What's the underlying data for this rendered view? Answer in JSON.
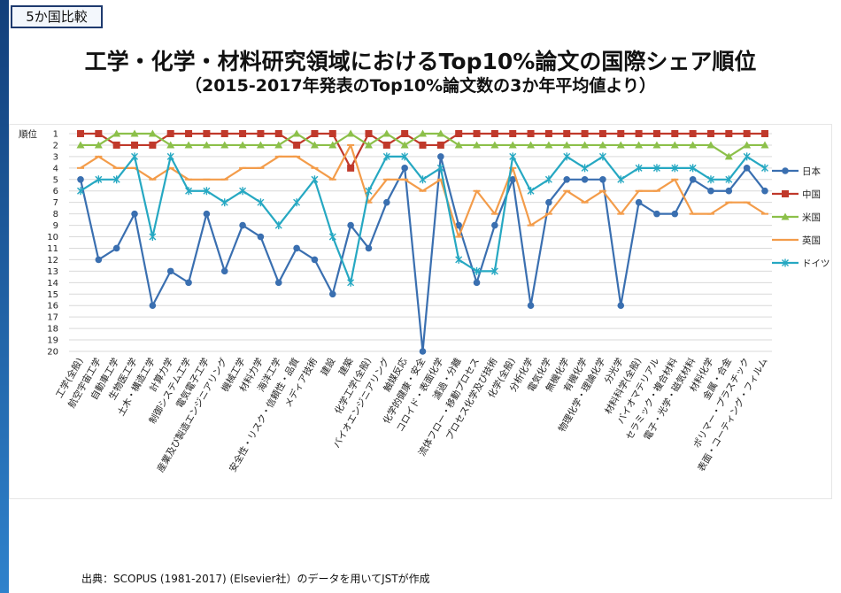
{
  "slide": {
    "tag": "5か国比較",
    "title": "工学・化学・材料研究領域におけるTop10%論文の国際シェア順位",
    "subtitle": "（2015-2017年発表のTop10%論文数の3か年平均値より）",
    "source": "出典：SCOPUS (1981-2017) (Elsevier社）のデータを用いてJSTが作成"
  },
  "colors": {
    "日本": "#3a6fb0",
    "中国": "#c0392b",
    "米国": "#8cc04a",
    "英国": "#f39c4a",
    "ドイツ": "#26a8c2"
  },
  "chart_data": {
    "type": "line",
    "ylabel": "順位",
    "ylim": [
      1,
      20
    ],
    "y_inverted": true,
    "yticks": [
      1,
      2,
      3,
      4,
      5,
      6,
      7,
      8,
      9,
      10,
      11,
      12,
      13,
      14,
      15,
      16,
      17,
      18,
      19,
      20
    ],
    "grid": true,
    "legend_position": "right",
    "categories": [
      "工学(全般)",
      "航空宇宙工学",
      "自動車工学",
      "生物医工学",
      "土木・構造工学",
      "計算力学",
      "制御システム工学",
      "電気電子工学",
      "産業及び製造エンジニアリング",
      "機械工学",
      "材料力学",
      "海洋工学",
      "安全性・リスク・信頼性・品質",
      "メディア技術",
      "建設",
      "建築",
      "化学工学(全般)",
      "バイオエンジニアリング",
      "触媒反応",
      "化学的健康・安全",
      "コロイド・表面化学",
      "濾過・分離",
      "流体フロー・移動プロセス",
      "プロセス化学及び技術",
      "化学(全般)",
      "分析化学",
      "電気化学",
      "無機化学",
      "有機化学",
      "物理化学・理論化学",
      "分光学",
      "材料科学(全般)",
      "バイオマテリアル",
      "セラミック・複合材料",
      "電子・光学・磁気材料",
      "材料化学",
      "金属・合金",
      "ポリマー・プラスチック",
      "表面・コーティング・フィルム"
    ],
    "series": [
      {
        "name": "日本",
        "marker": "circle",
        "values": [
          5,
          12,
          11,
          8,
          16,
          13,
          14,
          8,
          13,
          9,
          10,
          14,
          11,
          12,
          15,
          9,
          11,
          7,
          4,
          20,
          3,
          9,
          14,
          9,
          5,
          16,
          7,
          5,
          5,
          5,
          16,
          7,
          8,
          8,
          5,
          6,
          6,
          4,
          6
        ]
      },
      {
        "name": "中国",
        "marker": "square",
        "values": [
          1,
          1,
          2,
          2,
          2,
          1,
          1,
          1,
          1,
          1,
          1,
          1,
          2,
          1,
          1,
          4,
          1,
          2,
          1,
          2,
          2,
          1,
          1,
          1,
          1,
          1,
          1,
          1,
          1,
          1,
          1,
          1,
          1,
          1,
          1,
          1,
          1,
          1,
          1
        ]
      },
      {
        "name": "米国",
        "marker": "triangle",
        "values": [
          2,
          2,
          1,
          1,
          1,
          2,
          2,
          2,
          2,
          2,
          2,
          2,
          1,
          2,
          2,
          1,
          2,
          1,
          2,
          1,
          1,
          2,
          2,
          2,
          2,
          2,
          2,
          2,
          2,
          2,
          2,
          2,
          2,
          2,
          2,
          2,
          3,
          2,
          2
        ]
      },
      {
        "name": "英国",
        "marker": "dash",
        "values": [
          4,
          3,
          4,
          4,
          5,
          4,
          5,
          5,
          5,
          4,
          4,
          3,
          3,
          4,
          5,
          2,
          7,
          5,
          5,
          6,
          5,
          10,
          6,
          8,
          4,
          9,
          8,
          6,
          7,
          6,
          8,
          6,
          6,
          5,
          8,
          8,
          7,
          7,
          8
        ]
      },
      {
        "name": "ドイツ",
        "marker": "star",
        "values": [
          6,
          5,
          5,
          3,
          10,
          3,
          6,
          6,
          7,
          6,
          7,
          9,
          7,
          5,
          10,
          14,
          6,
          3,
          3,
          5,
          4,
          12,
          13,
          13,
          3,
          6,
          5,
          3,
          4,
          3,
          5,
          4,
          4,
          4,
          4,
          5,
          5,
          3,
          4
        ]
      }
    ]
  }
}
